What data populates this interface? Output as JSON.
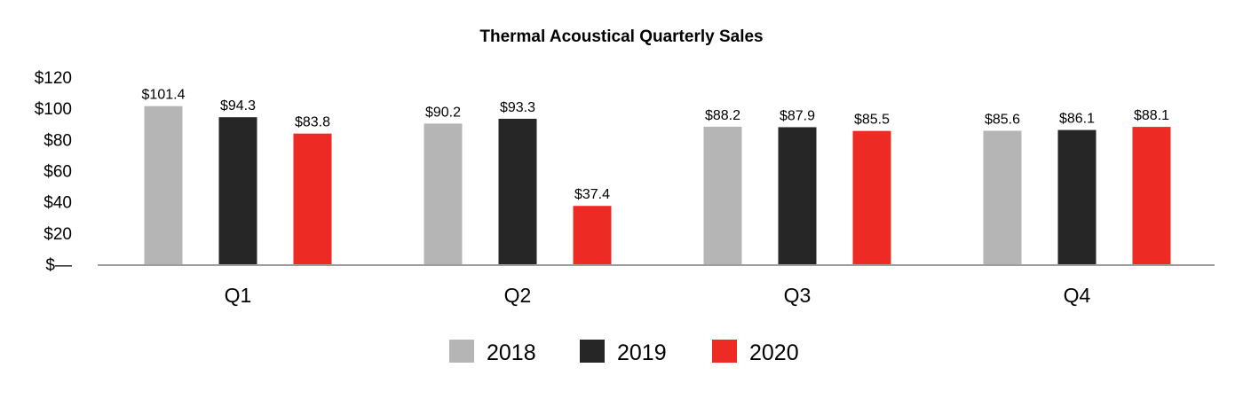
{
  "chart_data": {
    "type": "bar",
    "title": "Thermal Acoustical Quarterly Sales",
    "xlabel": "",
    "ylabel": "",
    "categories": [
      "Q1",
      "Q2",
      "Q3",
      "Q4"
    ],
    "ylim": [
      0,
      120
    ],
    "yticks": [
      {
        "value": 0,
        "label": "$—"
      },
      {
        "value": 20,
        "label": "$20"
      },
      {
        "value": 40,
        "label": "$40"
      },
      {
        "value": 60,
        "label": "$60"
      },
      {
        "value": 80,
        "label": "$80"
      },
      {
        "value": 100,
        "label": "$100"
      },
      {
        "value": 120,
        "label": "$120"
      }
    ],
    "series": [
      {
        "name": "2018",
        "color": "#b5b5b5",
        "values": [
          101.4,
          90.2,
          88.2,
          85.6
        ],
        "labels": [
          "$101.4",
          "$90.2",
          "$88.2",
          "$85.6"
        ]
      },
      {
        "name": "2019",
        "color": "#262626",
        "values": [
          94.3,
          93.3,
          87.9,
          86.1
        ],
        "labels": [
          "$94.3",
          "$93.3",
          "$87.9",
          "$86.1"
        ]
      },
      {
        "name": "2020",
        "color": "#ee2a24",
        "values": [
          83.8,
          37.4,
          85.5,
          88.1
        ],
        "labels": [
          "$83.8",
          "$37.4",
          "$85.5",
          "$88.1"
        ]
      }
    ],
    "grid": false,
    "legend_position": "bottom-center",
    "axis_color": "#9e9e9e"
  }
}
